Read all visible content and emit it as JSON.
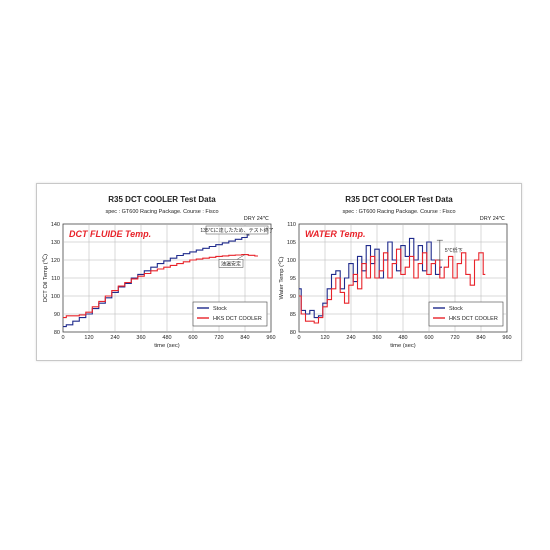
{
  "colors": {
    "stock": "#1f2a8c",
    "hks": "#e8232a",
    "grid": "#b5b5b5",
    "frame": "#444444"
  },
  "chart_data": [
    {
      "type": "line",
      "title": "R35 DCT COOLER Test Data",
      "spec": "spec : GT600 Racing Package.",
      "course": "Course : Fisco",
      "condition": "DRY  24℃",
      "big_label": "DCT FLUIDE Temp.",
      "ylabel": "DCT Oil Temp (℃)",
      "xlabel": "time (sec)",
      "xlim": [
        0,
        960
      ],
      "ylim": [
        80,
        140
      ],
      "xticks": [
        "0",
        "120",
        "240",
        "360",
        "480",
        "600",
        "720",
        "840",
        "960"
      ],
      "yticks": [
        "80",
        "90",
        "100",
        "110",
        "120",
        "130",
        "140"
      ],
      "annotation_top": "135℃に達したため、テスト終了",
      "annotation_mid": "油温安定",
      "legend": [
        "Stock",
        "HKS DCT COOLER"
      ],
      "series": [
        {
          "name": "Stock",
          "x": [
            0,
            30,
            60,
            90,
            120,
            150,
            180,
            210,
            240,
            270,
            300,
            330,
            360,
            390,
            420,
            450,
            480,
            510,
            540,
            570,
            600,
            630,
            660,
            690,
            720,
            750,
            780,
            810,
            840,
            860
          ],
          "y": [
            83,
            84,
            86,
            88,
            90,
            93,
            96,
            99,
            102,
            105,
            107,
            110,
            112,
            114,
            116,
            118,
            119.5,
            121,
            122.5,
            123.5,
            124.5,
            125.5,
            126.5,
            127.5,
            128.5,
            129.5,
            130.5,
            131.5,
            132.5,
            134
          ]
        },
        {
          "name": "HKS DCT COOLER",
          "x": [
            0,
            30,
            60,
            90,
            120,
            150,
            180,
            210,
            240,
            270,
            300,
            330,
            360,
            390,
            420,
            450,
            480,
            510,
            540,
            570,
            600,
            630,
            660,
            690,
            720,
            750,
            780,
            810,
            840,
            870,
            900
          ],
          "y": [
            88,
            89,
            89,
            89.5,
            91,
            94,
            97,
            100,
            103,
            105.5,
            107.5,
            109.5,
            111,
            112.5,
            114,
            115,
            116,
            117,
            118,
            119,
            120,
            120.5,
            121,
            121.5,
            122,
            122.3,
            122.6,
            122.8,
            123,
            122.6,
            122.2
          ]
        }
      ]
    },
    {
      "type": "line",
      "title": "R35 DCT COOLER Test Data",
      "spec": "spec : GT600 Racing Package.",
      "course": "Course : Fisco",
      "condition": "DRY  24℃",
      "big_label": "WATER Temp.",
      "ylabel": "Water Temp (℃)",
      "xlabel": "time (sec)",
      "xlim": [
        0,
        960
      ],
      "ylim": [
        80,
        110
      ],
      "xticks": [
        "0",
        "120",
        "240",
        "360",
        "480",
        "600",
        "720",
        "840",
        "960"
      ],
      "yticks": [
        "80",
        "85",
        "90",
        "95",
        "100",
        "105",
        "110"
      ],
      "annotation_mid": "5℃低下",
      "legend": [
        "Stock",
        "HKS DCT COOLER"
      ],
      "series": [
        {
          "name": "Stock",
          "x": [
            0,
            20,
            40,
            60,
            80,
            100,
            120,
            140,
            160,
            180,
            200,
            220,
            240,
            260,
            280,
            300,
            320,
            340,
            360,
            380,
            400,
            420,
            440,
            460,
            480,
            500,
            520,
            540,
            560,
            580,
            600,
            620,
            640,
            660
          ],
          "y": [
            92,
            86,
            85,
            86,
            84,
            84.5,
            88,
            92,
            96,
            97,
            92,
            95,
            99,
            94,
            101,
            97,
            104,
            99,
            103,
            95,
            100,
            105,
            100,
            97,
            104,
            101,
            106,
            100,
            104,
            97,
            105,
            100,
            96,
            98
          ]
        },
        {
          "name": "HKS DCT COOLER",
          "x": [
            0,
            20,
            40,
            60,
            80,
            100,
            120,
            140,
            160,
            180,
            200,
            220,
            240,
            260,
            280,
            300,
            320,
            340,
            360,
            380,
            400,
            420,
            440,
            460,
            480,
            500,
            520,
            540,
            560,
            580,
            600,
            620,
            640,
            660,
            680,
            700,
            720,
            740,
            760,
            780,
            800,
            820,
            840,
            860
          ],
          "y": [
            90,
            85,
            83,
            83,
            82.5,
            84,
            87,
            89,
            92,
            95,
            91,
            88,
            93,
            96,
            92,
            99,
            95,
            101,
            95,
            97,
            102,
            95,
            99,
            103,
            96,
            98,
            101,
            95,
            99,
            102,
            96,
            99,
            100,
            95,
            98,
            101,
            95,
            99,
            102,
            96,
            93,
            100,
            102,
            96
          ]
        }
      ]
    }
  ]
}
